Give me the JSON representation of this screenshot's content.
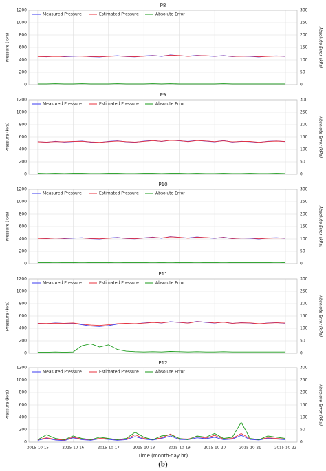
{
  "chart_data": [
    {
      "type": "line",
      "title": "P8",
      "y_label": "Pressure (kPa)",
      "y2_label": "Absolute Error (kPa)",
      "x": [
        0,
        0.25,
        0.5,
        0.75,
        1,
        1.25,
        1.5,
        1.75,
        2,
        2.25,
        2.5,
        2.75,
        3,
        3.25,
        3.5,
        3.75,
        4,
        4.25,
        4.5,
        4.75,
        5,
        5.25,
        5.5,
        5.75,
        6,
        6.25,
        6.5,
        6.75,
        7
      ],
      "xlim": [
        -0.25,
        7.33
      ],
      "xticks": [
        0,
        1,
        2,
        3,
        4,
        5,
        6,
        7
      ],
      "ylim": [
        0,
        1200
      ],
      "yticks": [
        0,
        200,
        400,
        600,
        800,
        1000,
        1200
      ],
      "y2lim": [
        0,
        300
      ],
      "y2ticks": [
        0,
        50,
        100,
        150,
        200,
        250,
        300
      ],
      "vline": 6,
      "grid": true,
      "legend": "upper left",
      "series": [
        {
          "name": "Measured Pressure",
          "color": "#3b3bf0",
          "values": [
            455,
            448,
            460,
            450,
            457,
            462,
            449,
            446,
            458,
            466,
            452,
            447,
            461,
            470,
            456,
            478,
            466,
            458,
            471,
            463,
            455,
            469,
            451,
            460,
            456,
            446,
            459,
            463,
            455
          ]
        },
        {
          "name": "Estimated Pressure",
          "color": "#e8323c",
          "values": [
            452,
            451,
            456,
            453,
            460,
            458,
            452,
            449,
            455,
            462,
            455,
            450,
            458,
            466,
            459,
            474,
            469,
            455,
            468,
            466,
            458,
            465,
            454,
            457,
            459,
            449,
            456,
            460,
            458
          ]
        },
        {
          "name": "Absolute Error",
          "color": "#1a9a1a",
          "axis": "y2",
          "values": [
            3,
            3,
            4,
            3,
            3,
            4,
            3,
            3,
            3,
            4,
            3,
            3,
            3,
            4,
            3,
            4,
            3,
            3,
            3,
            3,
            3,
            4,
            3,
            3,
            3,
            3,
            3,
            3,
            3
          ]
        }
      ]
    },
    {
      "type": "line",
      "title": "P9",
      "y_label": "Pressure (kPa)",
      "y2_label": "Absolute Error (kPa)",
      "x": [
        0,
        0.25,
        0.5,
        0.75,
        1,
        1.25,
        1.5,
        1.75,
        2,
        2.25,
        2.5,
        2.75,
        3,
        3.25,
        3.5,
        3.75,
        4,
        4.25,
        4.5,
        4.75,
        5,
        5.25,
        5.5,
        5.75,
        6,
        6.25,
        6.5,
        6.75,
        7
      ],
      "xlim": [
        -0.25,
        7.33
      ],
      "xticks": [
        0,
        1,
        2,
        3,
        4,
        5,
        6,
        7
      ],
      "ylim": [
        0,
        1200
      ],
      "yticks": [
        0,
        200,
        400,
        600,
        800,
        1000,
        1200
      ],
      "y2lim": [
        0,
        300
      ],
      "y2ticks": [
        0,
        50,
        100,
        150,
        200,
        250,
        300
      ],
      "vline": 6,
      "grid": true,
      "legend": "upper left",
      "series": [
        {
          "name": "Measured Pressure",
          "color": "#3b3bf0",
          "values": [
            525,
            515,
            530,
            518,
            526,
            534,
            517,
            512,
            528,
            538,
            521,
            515,
            532,
            545,
            527,
            550,
            538,
            528,
            545,
            533,
            522,
            542,
            518,
            530,
            525,
            512,
            530,
            536,
            524
          ]
        },
        {
          "name": "Estimated Pressure",
          "color": "#e8323c",
          "values": [
            522,
            518,
            526,
            521,
            529,
            530,
            520,
            515,
            525,
            534,
            524,
            518,
            529,
            541,
            530,
            546,
            541,
            525,
            542,
            536,
            525,
            538,
            521,
            527,
            528,
            515,
            527,
            533,
            527
          ]
        },
        {
          "name": "Absolute Error",
          "color": "#1a9a1a",
          "axis": "y2",
          "values": [
            4,
            3,
            4,
            3,
            4,
            4,
            3,
            3,
            4,
            4,
            3,
            3,
            4,
            4,
            3,
            4,
            4,
            3,
            4,
            3,
            3,
            4,
            3,
            3,
            4,
            3,
            3,
            4,
            3
          ]
        }
      ]
    },
    {
      "type": "line",
      "title": "P10",
      "y_label": "Pressure (kPa)",
      "y2_label": "Absolute Error (kPa)",
      "x": [
        0,
        0.25,
        0.5,
        0.75,
        1,
        1.25,
        1.5,
        1.75,
        2,
        2.25,
        2.5,
        2.75,
        3,
        3.25,
        3.5,
        3.75,
        4,
        4.25,
        4.5,
        4.75,
        5,
        5.25,
        5.5,
        5.75,
        6,
        6.25,
        6.5,
        6.75,
        7
      ],
      "xlim": [
        -0.25,
        7.33
      ],
      "xticks": [
        0,
        1,
        2,
        3,
        4,
        5,
        6,
        7
      ],
      "ylim": [
        0,
        1200
      ],
      "yticks": [
        0,
        200,
        400,
        600,
        800,
        1000,
        1200
      ],
      "y2lim": [
        0,
        300
      ],
      "y2ticks": [
        0,
        50,
        100,
        150,
        200,
        250,
        300
      ],
      "vline": 6,
      "grid": true,
      "legend": "upper left",
      "series": [
        {
          "name": "Measured Pressure",
          "color": "#3b3bf0",
          "values": [
            412,
            404,
            418,
            406,
            413,
            420,
            405,
            400,
            415,
            424,
            408,
            402,
            418,
            430,
            412,
            438,
            424,
            415,
            432,
            420,
            410,
            428,
            405,
            417,
            412,
            400,
            415,
            420,
            410
          ]
        },
        {
          "name": "Estimated Pressure",
          "color": "#e8323c",
          "values": [
            409,
            407,
            414,
            409,
            416,
            416,
            408,
            403,
            412,
            420,
            411,
            405,
            415,
            426,
            415,
            434,
            427,
            412,
            429,
            423,
            413,
            424,
            408,
            414,
            415,
            403,
            412,
            417,
            413
          ]
        },
        {
          "name": "Absolute Error",
          "color": "#1a9a1a",
          "axis": "y2",
          "values": [
            4,
            4,
            5,
            4,
            4,
            5,
            4,
            4,
            4,
            5,
            4,
            4,
            4,
            5,
            4,
            5,
            4,
            4,
            5,
            4,
            4,
            5,
            4,
            4,
            4,
            4,
            4,
            5,
            4
          ]
        }
      ]
    },
    {
      "type": "line",
      "title": "P11",
      "y_label": "Pressure (kPa)",
      "y2_label": "Absolute Error (kPa)",
      "x": [
        0,
        0.25,
        0.5,
        0.75,
        1,
        1.25,
        1.5,
        1.75,
        2,
        2.25,
        2.5,
        2.75,
        3,
        3.25,
        3.5,
        3.75,
        4,
        4.25,
        4.5,
        4.75,
        5,
        5.25,
        5.5,
        5.75,
        6,
        6.25,
        6.5,
        6.75,
        7
      ],
      "xlim": [
        -0.25,
        7.33
      ],
      "xticks": [
        0,
        1,
        2,
        3,
        4,
        5,
        6,
        7
      ],
      "ylim": [
        0,
        1200
      ],
      "yticks": [
        0,
        200,
        400,
        600,
        800,
        1000,
        1200
      ],
      "y2lim": [
        0,
        300
      ],
      "y2ticks": [
        0,
        50,
        100,
        150,
        200,
        250,
        300
      ],
      "vline": 6,
      "grid": true,
      "legend": "upper left",
      "series": [
        {
          "name": "Measured Pressure",
          "color": "#3b3bf0",
          "values": [
            485,
            478,
            490,
            482,
            486,
            460,
            438,
            430,
            445,
            470,
            482,
            476,
            490,
            502,
            488,
            512,
            498,
            490,
            515,
            500,
            488,
            506,
            482,
            495,
            488,
            475,
            490,
            496,
            485
          ]
        },
        {
          "name": "Estimated Pressure",
          "color": "#e8323c",
          "values": [
            482,
            481,
            486,
            485,
            489,
            470,
            455,
            448,
            460,
            478,
            485,
            479,
            487,
            498,
            491,
            508,
            501,
            487,
            512,
            503,
            491,
            502,
            485,
            492,
            491,
            478,
            487,
            493,
            488
          ]
        },
        {
          "name": "Absolute Error",
          "color": "#1a9a1a",
          "axis": "y2",
          "values": [
            4,
            4,
            5,
            4,
            5,
            30,
            38,
            25,
            34,
            15,
            8,
            6,
            5,
            6,
            5,
            7,
            6,
            5,
            6,
            5,
            5,
            6,
            5,
            5,
            5,
            5,
            5,
            5,
            5
          ]
        }
      ]
    },
    {
      "type": "line",
      "title": "P12",
      "y_label": "Pressure (kPa)",
      "y2_label": "Absolute Error (kPa)",
      "x_label": "Time (month-day hr)",
      "x": [
        0,
        0.25,
        0.5,
        0.75,
        1,
        1.25,
        1.5,
        1.75,
        2,
        2.25,
        2.5,
        2.75,
        3,
        3.25,
        3.5,
        3.75,
        4,
        4.25,
        4.5,
        4.75,
        5,
        5.25,
        5.5,
        5.75,
        6,
        6.25,
        6.5,
        6.75,
        7
      ],
      "xlim": [
        -0.25,
        7.33
      ],
      "xticks": [
        {
          "value": 0,
          "label": "2015-10-15"
        },
        {
          "value": 1,
          "label": "2015-10-16"
        },
        {
          "value": 2,
          "label": "2015-10-17"
        },
        {
          "value": 3,
          "label": "2015-10-18"
        },
        {
          "value": 4,
          "label": "2015-10-19"
        },
        {
          "value": 5,
          "label": "2015-10-20"
        },
        {
          "value": 6,
          "label": "2015-10-21"
        },
        {
          "value": 7,
          "label": "2015-10-22"
        }
      ],
      "ylim": [
        0,
        1200
      ],
      "yticks": [
        0,
        200,
        400,
        600,
        800,
        1000,
        1200
      ],
      "y2lim": [
        0,
        300
      ],
      "y2ticks": [
        0,
        50,
        100,
        150,
        200,
        250,
        300
      ],
      "vline": 6,
      "grid": true,
      "legend": "upper left",
      "series": [
        {
          "name": "Measured Pressure",
          "color": "#3b3bf0",
          "values": [
            30,
            60,
            35,
            25,
            70,
            40,
            30,
            55,
            45,
            30,
            40,
            90,
            50,
            35,
            60,
            100,
            45,
            40,
            70,
            55,
            80,
            40,
            50,
            110,
            45,
            35,
            60,
            50,
            40
          ]
        },
        {
          "name": "Estimated Pressure",
          "color": "#e8323c",
          "values": [
            40,
            70,
            45,
            35,
            80,
            50,
            40,
            60,
            55,
            40,
            50,
            120,
            60,
            45,
            70,
            130,
            55,
            50,
            90,
            65,
            110,
            50,
            60,
            140,
            55,
            45,
            70,
            60,
            50
          ]
        },
        {
          "name": "Absolute Error",
          "color": "#1a9a1a",
          "axis": "y2",
          "values": [
            10,
            30,
            15,
            10,
            25,
            15,
            10,
            20,
            15,
            10,
            15,
            40,
            20,
            10,
            25,
            30,
            15,
            10,
            25,
            20,
            35,
            15,
            20,
            80,
            15,
            10,
            25,
            20,
            15
          ]
        }
      ]
    }
  ],
  "caption": "(b)"
}
